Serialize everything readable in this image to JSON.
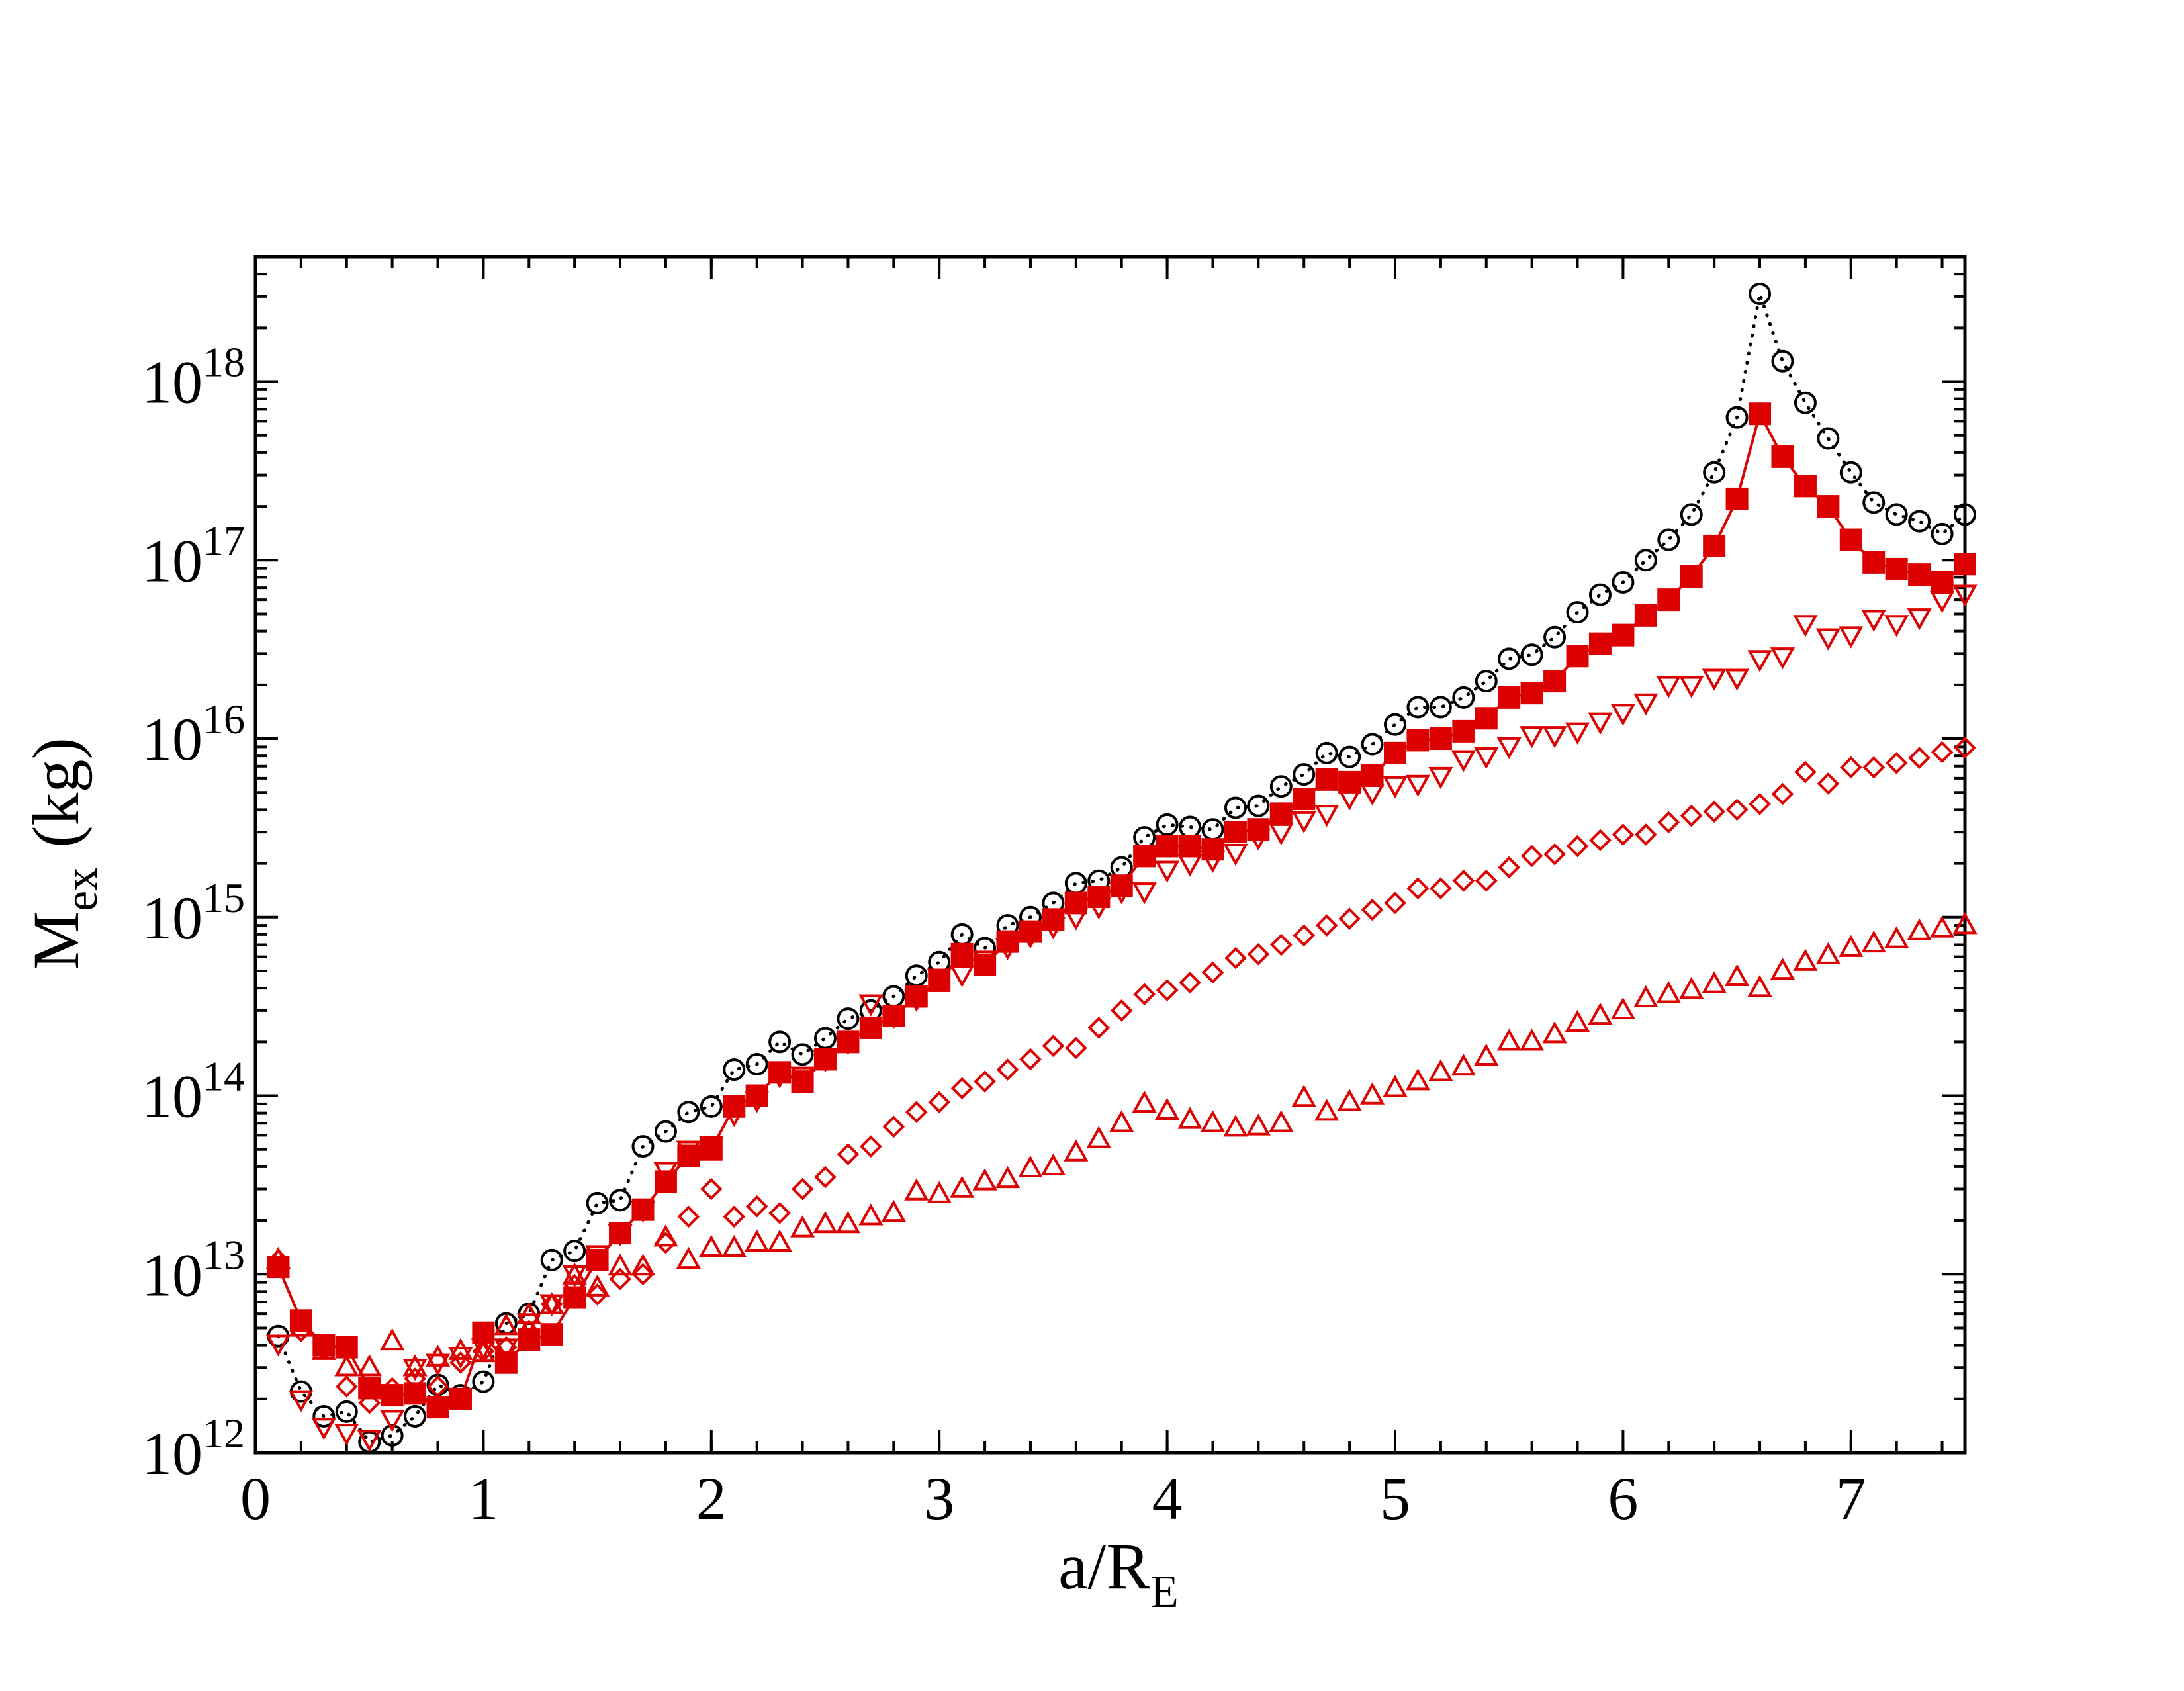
{
  "chart_data": {
    "type": "scatter",
    "x_label": {
      "main": "a/R",
      "sub": "E"
    },
    "y_label": {
      "main": "M",
      "sub": "ex",
      "tail": "(kg)"
    },
    "xlim": [
      0,
      7.5
    ],
    "xticks": [
      0,
      1,
      2,
      3,
      4,
      5,
      6,
      7
    ],
    "ylim": [
      1000000000000.0,
      5e+18
    ],
    "yscale": "log",
    "yticks": [
      {
        "value": 1000000000000.0,
        "label": "10",
        "exponent": "12"
      },
      {
        "value": 10000000000000.0,
        "label": "10",
        "exponent": "13"
      },
      {
        "value": 100000000000000.0,
        "label": "10",
        "exponent": "14"
      },
      {
        "value": 1000000000000000.0,
        "label": "10",
        "exponent": "15"
      },
      {
        "value": 1e+16,
        "label": "10",
        "exponent": "16"
      },
      {
        "value": 1e+17,
        "label": "10",
        "exponent": "17"
      },
      {
        "value": 1e+18,
        "label": "10",
        "exponent": "18"
      }
    ],
    "x": [
      0.1,
      0.2,
      0.3,
      0.4,
      0.5,
      0.6,
      0.7,
      0.8,
      0.9,
      1.0,
      1.1,
      1.2,
      1.3,
      1.4,
      1.5,
      1.6,
      1.7,
      1.8,
      1.9,
      2.0,
      2.1,
      2.2,
      2.3,
      2.4,
      2.5,
      2.6,
      2.7,
      2.8,
      2.9,
      3.0,
      3.1,
      3.2,
      3.3,
      3.4,
      3.5,
      3.6,
      3.7,
      3.8,
      3.9,
      4.0,
      4.1,
      4.2,
      4.3,
      4.4,
      4.5,
      4.6,
      4.7,
      4.8,
      4.9,
      5.0,
      5.1,
      5.2,
      5.3,
      5.4,
      5.5,
      5.6,
      5.7,
      5.8,
      5.9,
      6.0,
      6.1,
      6.2,
      6.3,
      6.4,
      6.5,
      6.6,
      6.7,
      6.8,
      6.9,
      7.0,
      7.1,
      7.2,
      7.3,
      7.4,
      7.5
    ],
    "series": [
      {
        "color": "#000000",
        "marker": "circle",
        "filled": false,
        "line": "dotted",
        "values": [
          4500000000000.0,
          2200000000000.0,
          1600000000000.0,
          1700000000000.0,
          1150000000000.0,
          1250000000000.0,
          1600000000000.0,
          2400000000000.0,
          2100000000000.0,
          2500000000000.0,
          5300000000000.0,
          6000000000000.0,
          12000000000000.0,
          13500000000000.0,
          25000000000000.0,
          26000000000000.0,
          52000000000000.0,
          63000000000000.0,
          81000000000000.0,
          87000000000000.0,
          140000000000000.0,
          150000000000000.0,
          200000000000000.0,
          170000000000000.0,
          210000000000000.0,
          270000000000000.0,
          300000000000000.0,
          360000000000000.0,
          470000000000000.0,
          560000000000000.0,
          800000000000000.0,
          670000000000000.0,
          900000000000000.0,
          1000000000000000.0,
          1200000000000000.0,
          1550000000000000.0,
          1600000000000000.0,
          1900000000000000.0,
          2800000000000000.0,
          3300000000000000.0,
          3200000000000000.0,
          3100000000000000.0,
          4100000000000000.0,
          4200000000000000.0,
          5400000000000000.0,
          6300000000000000.0,
          8300000000000000.0,
          7900000000000000.0,
          9300000000000000.0,
          1.2e+16,
          1.5e+16,
          1.5e+16,
          1.7e+16,
          2.1e+16,
          2.8e+16,
          2.95e+16,
          3.7e+16,
          5.1e+16,
          6.4e+16,
          7.5e+16,
          1e+17,
          1.3e+17,
          1.8e+17,
          3.1e+17,
          6.3e+17,
          3.1e+18,
          1.3e+18,
          7.6e+17,
          4.8e+17,
          3.1e+17,
          2.1e+17,
          1.8e+17,
          1.65e+17,
          1.4e+17,
          1.8e+17
        ]
      },
      {
        "color": "#dd0000",
        "marker": "triangle-down",
        "filled": false,
        "line": "none",
        "values": [
          4100000000000.0,
          2000000000000.0,
          1400000000000.0,
          1300000000000.0,
          1200000000000.0,
          1550000000000.0,
          3000000000000.0,
          3200000000000.0,
          3500000000000.0,
          3900000000000.0,
          3900000000000.0,
          5400000000000.0,
          6900000000000.0,
          10000000000000.0,
          13000000000000.0,
          17000000000000.0,
          23000000000000.0,
          38000000000000.0,
          50000000000000.0,
          53000000000000.0,
          79000000000000.0,
          95000000000000.0,
          130000000000000.0,
          130000000000000.0,
          160000000000000.0,
          200000000000000.0,
          330000000000000.0,
          280000000000000.0,
          350000000000000.0,
          460000000000000.0,
          480000000000000.0,
          580000000000000.0,
          680000000000000.0,
          790000000000000.0,
          890000000000000.0,
          1000000000000000.0,
          1150000000000000.0,
          1400000000000000.0,
          1400000000000000.0,
          1850000000000000.0,
          2000000000000000.0,
          2100000000000000.0,
          2300000000000000.0,
          2800000000000000.0,
          3000000000000000.0,
          3500000000000000.0,
          3800000000000000.0,
          4700000000000000.0,
          5000000000000000.0,
          5500000000000000.0,
          5600000000000000.0,
          6200000000000000.0,
          7700000000000000.0,
          8000000000000000.0,
          9100000000000000.0,
          1.05e+16,
          1.05e+16,
          1.1e+16,
          1.25e+16,
          1.4e+16,
          1.6e+16,
          2e+16,
          2e+16,
          2.2e+16,
          2.2e+16,
          2.8e+16,
          2.9e+16,
          4.4e+16,
          3.7e+16,
          3.8e+16,
          4.7e+16,
          4.4e+16,
          4.8e+16,
          6e+16,
          6.5e+16
        ]
      },
      {
        "color": "#dd0000",
        "marker": "diamond",
        "filled": false,
        "line": "none",
        "values": [
          12000000000000.0,
          4800000000000.0,
          3800000000000.0,
          2350000000000.0,
          1900000000000.0,
          2300000000000.0,
          2600000000000.0,
          2350000000000.0,
          3200000000000.0,
          3700000000000.0,
          3900000000000.0,
          4800000000000.0,
          6800000000000.0,
          8700000000000.0,
          7700000000000.0,
          9400000000000.0,
          10000000000000.0,
          15000000000000.0,
          21000000000000.0,
          30000000000000.0,
          21000000000000.0,
          24000000000000.0,
          22000000000000.0,
          30000000000000.0,
          35000000000000.0,
          47000000000000.0,
          52000000000000.0,
          67000000000000.0,
          81000000000000.0,
          92000000000000.0,
          110000000000000.0,
          120000000000000.0,
          140000000000000.0,
          160000000000000.0,
          190000000000000.0,
          185000000000000.0,
          240000000000000.0,
          300000000000000.0,
          370000000000000.0,
          390000000000000.0,
          430000000000000.0,
          490000000000000.0,
          590000000000000.0,
          620000000000000.0,
          700000000000000.0,
          790000000000000.0,
          900000000000000.0,
          980000000000000.0,
          1100000000000000.0,
          1200000000000000.0,
          1450000000000000.0,
          1450000000000000.0,
          1600000000000000.0,
          1600000000000000.0,
          1900000000000000.0,
          2200000000000000.0,
          2250000000000000.0,
          2500000000000000.0,
          2700000000000000.0,
          2900000000000000.0,
          2900000000000000.0,
          3400000000000000.0,
          3700000000000000.0,
          3900000000000000.0,
          4000000000000000.0,
          4300000000000000.0,
          4900000000000000.0,
          6500000000000000.0,
          5600000000000000.0,
          6900000000000000.0,
          6900000000000000.0,
          7300000000000000.0,
          7800000000000000.0,
          8400000000000000.0,
          8900000000000000.0
        ]
      },
      {
        "color": "#dd0000",
        "marker": "triangle-up",
        "filled": false,
        "line": "none",
        "values": [
          12000000000000.0,
          5000000000000.0,
          3700000000000.0,
          3000000000000.0,
          3000000000000.0,
          4200000000000.0,
          3000000000000.0,
          3400000000000.0,
          3700000000000.0,
          3600000000000.0,
          5100000000000.0,
          5900000000000.0,
          6700000000000.0,
          9800000000000.0,
          8400000000000.0,
          11000000000000.0,
          11000000000000.0,
          16000000000000.0,
          12000000000000.0,
          14000000000000.0,
          14000000000000.0,
          15000000000000.0,
          15000000000000.0,
          18000000000000.0,
          19000000000000.0,
          19000000000000.0,
          21000000000000.0,
          22000000000000.0,
          29000000000000.0,
          28000000000000.0,
          30000000000000.0,
          33000000000000.0,
          34000000000000.0,
          39000000000000.0,
          40000000000000.0,
          48000000000000.0,
          57000000000000.0,
          70000000000000.0,
          90000000000000.0,
          82000000000000.0,
          73000000000000.0,
          70000000000000.0,
          66000000000000.0,
          67000000000000.0,
          70000000000000.0,
          97000000000000.0,
          81000000000000.0,
          92000000000000.0,
          100000000000000.0,
          110000000000000.0,
          120000000000000.0,
          135000000000000.0,
          145000000000000.0,
          165000000000000.0,
          200000000000000.0,
          200000000000000.0,
          220000000000000.0,
          255000000000000.0,
          280000000000000.0,
          300000000000000.0,
          350000000000000.0,
          370000000000000.0,
          390000000000000.0,
          420000000000000.0,
          460000000000000.0,
          400000000000000.0,
          500000000000000.0,
          560000000000000.0,
          610000000000000.0,
          670000000000000.0,
          710000000000000.0,
          750000000000000.0,
          830000000000000.0,
          860000000000000.0,
          900000000000000.0
        ]
      },
      {
        "color": "#dd0000",
        "marker": "square",
        "filled": true,
        "line": "solid",
        "values": [
          11000000000000.0,
          5500000000000.0,
          4000000000000.0,
          3900000000000.0,
          2300000000000.0,
          2100000000000.0,
          2150000000000.0,
          1800000000000.0,
          2000000000000.0,
          4700000000000.0,
          3200000000000.0,
          4300000000000.0,
          4600000000000.0,
          7400000000000.0,
          12000000000000.0,
          17000000000000.0,
          23000000000000.0,
          33000000000000.0,
          46000000000000.0,
          50000000000000.0,
          87000000000000.0,
          100000000000000.0,
          135000000000000.0,
          120000000000000.0,
          160000000000000.0,
          200000000000000.0,
          240000000000000.0,
          280000000000000.0,
          360000000000000.0,
          440000000000000.0,
          620000000000000.0,
          540000000000000.0,
          730000000000000.0,
          830000000000000.0,
          970000000000000.0,
          1200000000000000.0,
          1300000000000000.0,
          1500000000000000.0,
          2200000000000000.0,
          2500000000000000.0,
          2500000000000000.0,
          2400000000000000.0,
          3000000000000000.0,
          3100000000000000.0,
          3800000000000000.0,
          4600000000000000.0,
          5900000000000000.0,
          5700000000000000.0,
          6200000000000000.0,
          8300000000000000.0,
          9800000000000000.0,
          1e+16,
          1.1e+16,
          1.3e+16,
          1.7e+16,
          1.8e+16,
          2.1e+16,
          2.9e+16,
          3.4e+16,
          3.8e+16,
          4.9e+16,
          6e+16,
          8.1e+16,
          1.2e+17,
          2.2e+17,
          6.6e+17,
          3.8e+17,
          2.6e+17,
          2e+17,
          1.3e+17,
          9.7e+16,
          8.9e+16,
          8.3e+16,
          7.5e+16,
          9.5e+16
        ]
      }
    ]
  }
}
